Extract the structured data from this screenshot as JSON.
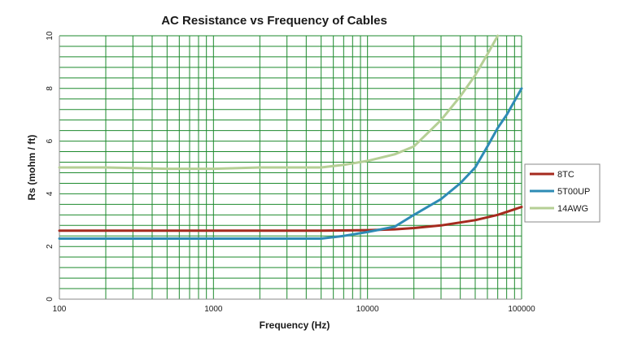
{
  "chart_data": {
    "type": "line",
    "title": "AC Resistance  vs Frequency  of Cables",
    "xlabel": "Frequency (Hz)",
    "ylabel": "Rs (mohm / ft)",
    "xscale": "log",
    "xlim": [
      100,
      100000
    ],
    "ylim": [
      0,
      10
    ],
    "xticks": [
      100,
      1000,
      10000,
      100000
    ],
    "xtick_labels": [
      "100",
      "1000",
      "10000",
      "100000"
    ],
    "yticks": [
      0,
      2,
      4,
      6,
      8,
      10
    ],
    "ytick_labels": [
      "0",
      "2",
      "4",
      "6",
      "8",
      "10"
    ],
    "ytick_rotated": true,
    "minor_y_step": 0.4,
    "grid": true,
    "grid_color": "#1e8a2e",
    "legend_position": "right",
    "series": [
      {
        "name": "8TC",
        "color": "#a52a1e",
        "x": [
          100,
          1000,
          5000,
          10000,
          15000,
          20000,
          30000,
          50000,
          70000,
          100000
        ],
        "y": [
          2.6,
          2.6,
          2.6,
          2.62,
          2.65,
          2.7,
          2.8,
          3.0,
          3.2,
          3.5
        ]
      },
      {
        "name": "5T00UP",
        "color": "#2e8bb5",
        "x": [
          100,
          1000,
          5000,
          7000,
          10000,
          15000,
          20000,
          30000,
          40000,
          50000,
          60000,
          70000,
          80000,
          100000
        ],
        "y": [
          2.3,
          2.3,
          2.3,
          2.4,
          2.55,
          2.75,
          3.2,
          3.8,
          4.4,
          5.0,
          5.8,
          6.5,
          7.0,
          8.0
        ]
      },
      {
        "name": "14AWG",
        "color": "#b5cf95",
        "x": [
          100,
          200,
          500,
          1000,
          2000,
          5000,
          7000,
          10000,
          15000,
          20000,
          30000,
          40000,
          50000,
          60000,
          70000
        ],
        "y": [
          5.0,
          5.0,
          4.95,
          4.95,
          5.0,
          5.0,
          5.1,
          5.25,
          5.5,
          5.8,
          6.8,
          7.7,
          8.5,
          9.3,
          10.0
        ]
      }
    ]
  }
}
